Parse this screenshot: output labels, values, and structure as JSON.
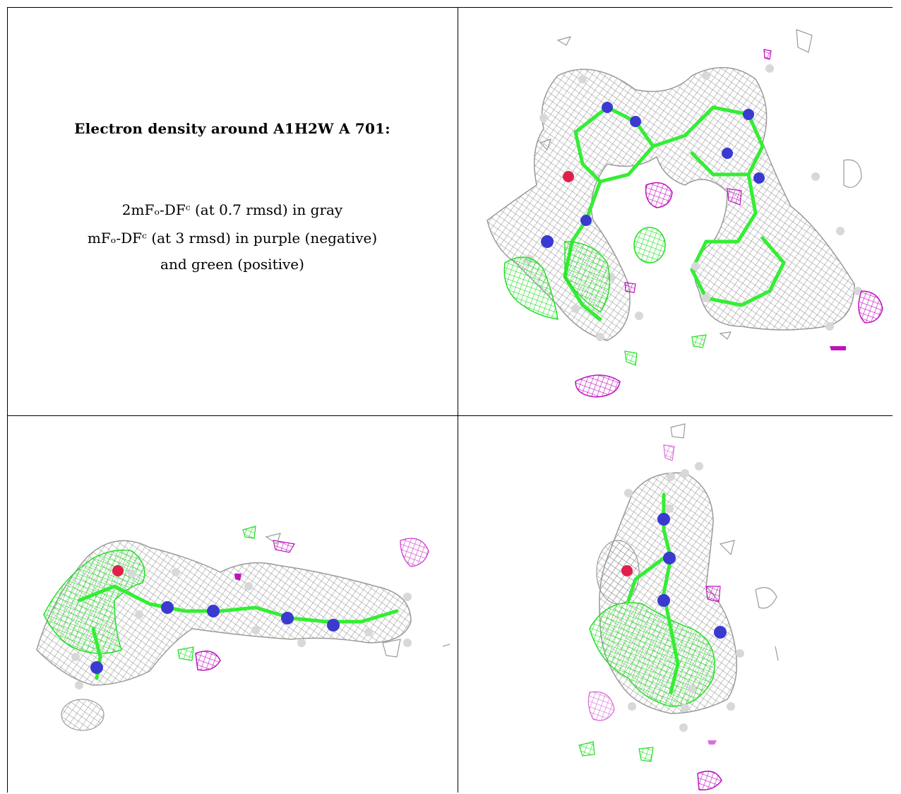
{
  "caption": {
    "title": "Electron density around A1H2W A 701:",
    "line1": "2mFₒ-DFᶜ (at 0.7 rmsd) in gray",
    "line2": "mFₒ-DFᶜ (at 3 rmsd) in purple (negative)",
    "line3": "and green (positive)"
  },
  "colors": {
    "density_2fofc": "#8c8c8c",
    "difference_positive": "#22e022",
    "difference_negative": "#c010c0",
    "carbon": "#33ee33",
    "nitrogen": "#3a3ad0",
    "oxygen": "#e0204a",
    "hydrogen": "#d8d8d8"
  },
  "panels": [
    {
      "name": "view-top-right",
      "view": "face-on"
    },
    {
      "name": "view-bottom-left",
      "view": "edge-on"
    },
    {
      "name": "view-bottom-right",
      "view": "end-on"
    }
  ]
}
